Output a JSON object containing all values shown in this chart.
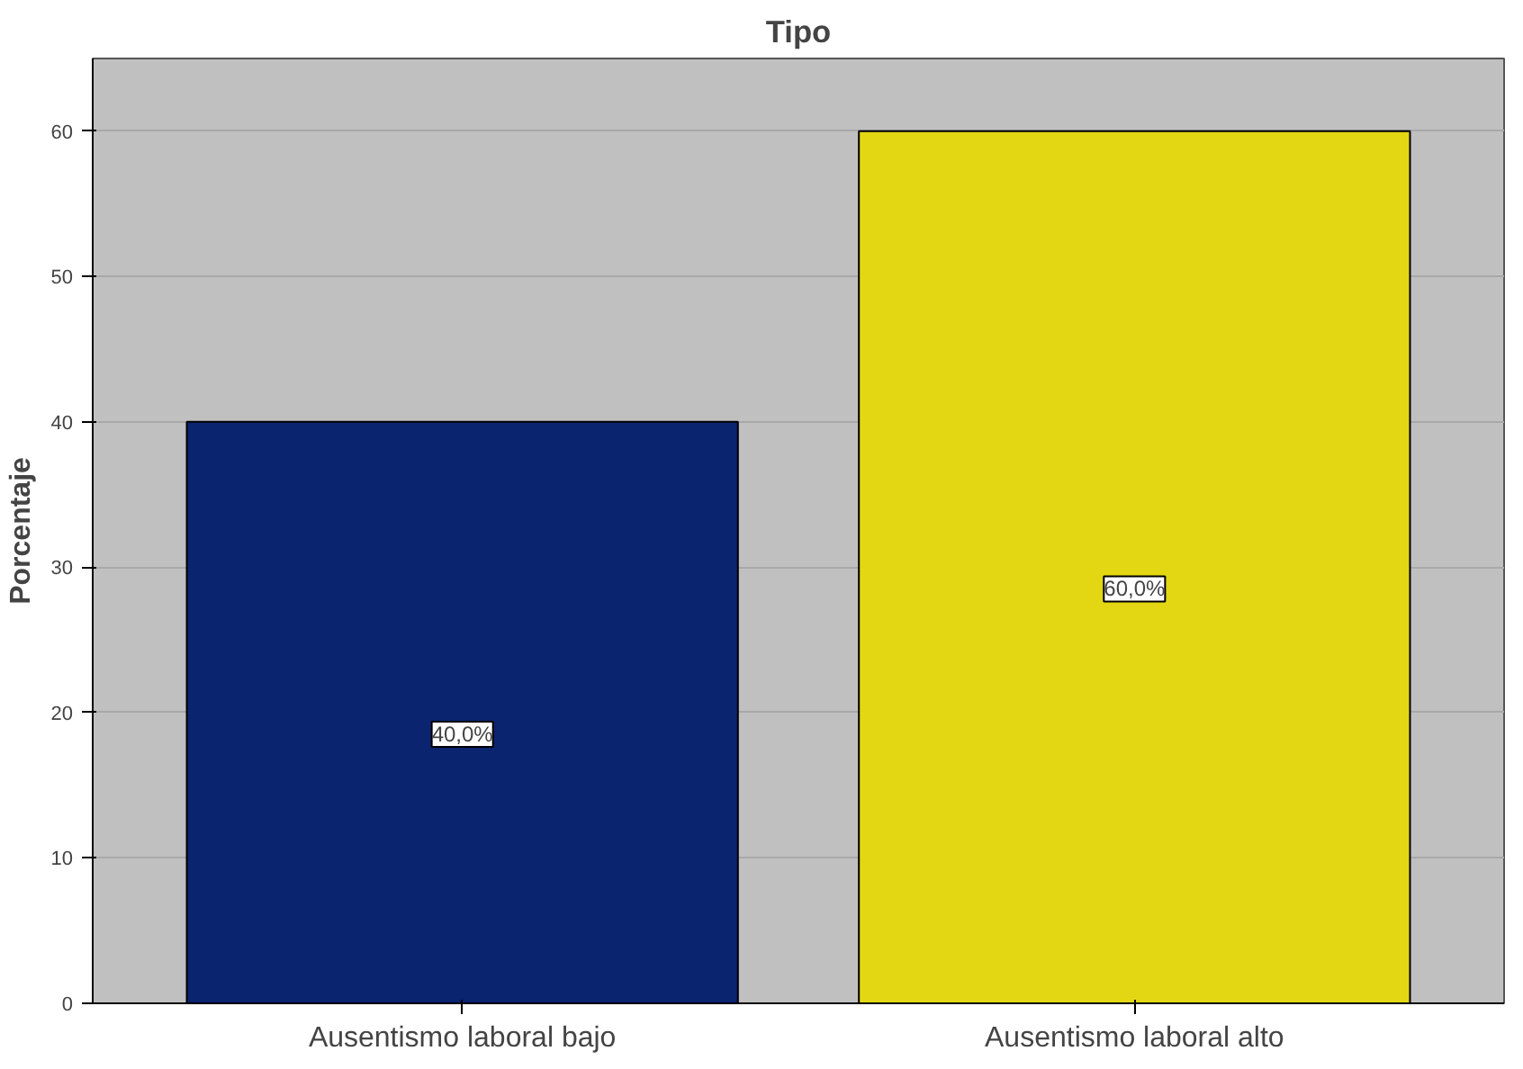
{
  "chart_data": {
    "type": "bar",
    "title": "Tipo",
    "ylabel": "Porcentaje",
    "categories": [
      "Ausentismo laboral bajo",
      "Ausentismo laboral alto"
    ],
    "values": [
      40,
      60
    ],
    "colors": [
      "#0b2470",
      "#e3d714"
    ],
    "value_labels": [
      "40,0%",
      "60,0%"
    ],
    "ylim": [
      0,
      65
    ],
    "yticks": [
      0,
      10,
      20,
      30,
      40,
      50,
      60
    ],
    "grid": "y"
  }
}
